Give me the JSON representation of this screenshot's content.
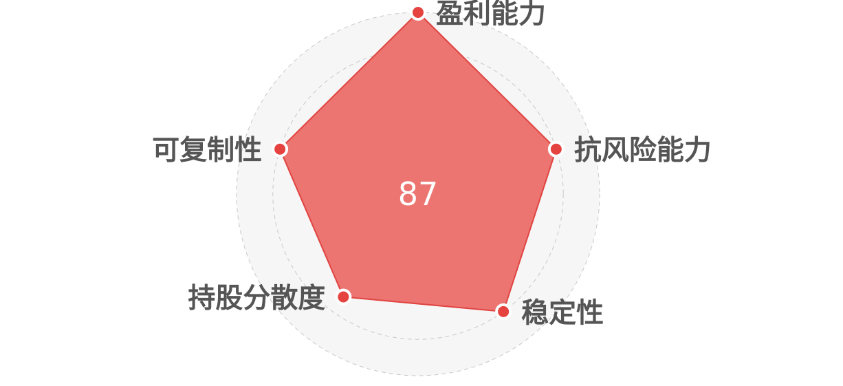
{
  "chart_data": {
    "type": "radar",
    "score": "87",
    "axes": [
      {
        "name": "盈利能力",
        "value": 100
      },
      {
        "name": "抗风险能力",
        "value": 80
      },
      {
        "name": "稳定性",
        "value": 80
      },
      {
        "name": "持股分散度",
        "value": 70
      },
      {
        "name": "可复制性",
        "value": 80
      }
    ],
    "max": 100,
    "ring_count": 5,
    "colors": {
      "area_fill": "#ec7471",
      "area_stroke": "#e04441",
      "point_fill": "#e5433f",
      "point_stroke": "#ffffff",
      "ring_fill": "#f6f6f6",
      "ring_stroke": "#c8c8c8",
      "label_text": "#555555",
      "score_text": "#ffffff"
    }
  }
}
